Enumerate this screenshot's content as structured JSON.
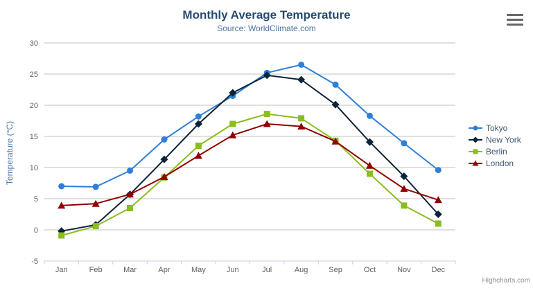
{
  "chart_data": {
    "type": "line",
    "title": "Monthly Average Temperature",
    "subtitle": "Source: WorldClimate.com",
    "xlabel": "",
    "ylabel": "Temperature (°C)",
    "categories": [
      "Jan",
      "Feb",
      "Mar",
      "Apr",
      "May",
      "Jun",
      "Jul",
      "Aug",
      "Sep",
      "Oct",
      "Nov",
      "Dec"
    ],
    "ylim": [
      -5,
      30
    ],
    "y_tick_step": 5,
    "grid": true,
    "legend_position": "right",
    "series": [
      {
        "name": "Tokyo",
        "color": "#2f7ed8",
        "marker": "circle",
        "values": [
          7.0,
          6.9,
          9.5,
          14.5,
          18.2,
          21.5,
          25.2,
          26.5,
          23.3,
          18.3,
          13.9,
          9.6
        ]
      },
      {
        "name": "New York",
        "color": "#0d233a",
        "marker": "diamond",
        "values": [
          -0.2,
          0.8,
          5.7,
          11.3,
          17.0,
          22.0,
          24.8,
          24.1,
          20.1,
          14.1,
          8.6,
          2.5
        ]
      },
      {
        "name": "Berlin",
        "color": "#8bbc21",
        "marker": "square",
        "values": [
          -0.9,
          0.6,
          3.5,
          8.4,
          13.5,
          17.0,
          18.6,
          17.9,
          14.3,
          9.0,
          3.9,
          1.0
        ]
      },
      {
        "name": "London",
        "color": "#910000",
        "marker": "triangle",
        "values": [
          3.9,
          4.2,
          5.7,
          8.5,
          11.9,
          15.2,
          17.0,
          16.6,
          14.2,
          10.3,
          6.6,
          4.8
        ]
      }
    ]
  },
  "credits": "Highcharts.com",
  "export_menu": {
    "icon": "hamburger-icon"
  },
  "colors": {
    "background": "#ffffff",
    "grid_line": "#C0C0C0",
    "axis_line": "#C0D0E0",
    "axis_label": "#606060",
    "title": "#274b6d",
    "subtitle": "#4d759e",
    "axis_title": "#4d759e",
    "legend_text": "#3E576F",
    "credits": "#909090"
  }
}
